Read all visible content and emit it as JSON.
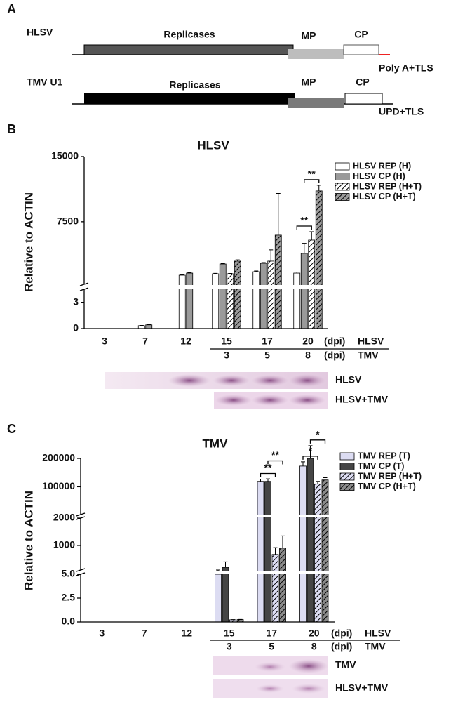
{
  "diagram": {
    "panel_label": "A",
    "genomes": [
      {
        "name": "HLSV",
        "replicase": "Replicases",
        "mp": "MP",
        "cp": "CP",
        "tail": "Poly A+TLS"
      },
      {
        "name": "TMV U1",
        "replicase": "Replicases",
        "mp": "MP",
        "cp": "CP",
        "tail": "UPD+TLS"
      }
    ]
  },
  "chart_data": [
    {
      "type": "bar",
      "panel_label": "B",
      "title": "HLSV",
      "ylabel": "Relative to ACTIN",
      "categories": [
        "3",
        "7",
        "12",
        "15",
        "17",
        "20"
      ],
      "categories2": [
        null,
        null,
        null,
        "3",
        "5",
        "8"
      ],
      "x_rows": [
        {
          "unit": "(dpi)",
          "label": "HLSV"
        },
        {
          "unit": "(dpi)",
          "label": "TMV"
        }
      ],
      "segments": [
        {
          "ylim": [
            0,
            4.5
          ],
          "yticks": [
            0,
            3
          ]
        },
        {
          "ylim": [
            300,
            15000
          ],
          "yticks": [
            7500,
            15000
          ]
        }
      ],
      "legend": "upper right",
      "series": [
        {
          "name": "HLSV REP (H)",
          "color": "#ffffff",
          "hatch": false,
          "values": [
            0,
            0.33,
            1350,
            1510,
            1750,
            1590
          ],
          "errors": [
            0,
            0.03,
            60,
            50,
            80,
            120
          ]
        },
        {
          "name": "HLSV CP (H)",
          "color": "#9a9a9a",
          "hatch": false,
          "values": [
            0,
            0.42,
            1590,
            2640,
            2720,
            3860
          ],
          "errors": [
            0,
            0.03,
            40,
            40,
            80,
            1150
          ]
        },
        {
          "name": "HLSV REP (H+T)",
          "color": "#ffffff",
          "hatch": true,
          "values": [
            null,
            null,
            null,
            1510,
            2970,
            5390
          ],
          "errors": [
            null,
            null,
            null,
            40,
            1300,
            970
          ]
        },
        {
          "name": "HLSV CP (H+T)",
          "color": "#9a9a9a",
          "hatch": true,
          "values": [
            null,
            null,
            null,
            2970,
            5960,
            11050
          ],
          "errors": [
            null,
            null,
            null,
            150,
            4800,
            650
          ]
        }
      ],
      "annotations": [
        {
          "text": "**",
          "category": 5,
          "from": 0,
          "to": 2
        },
        {
          "text": "**",
          "category": 5,
          "from": 1,
          "to": 3
        }
      ],
      "blot_labels": [
        "HLSV",
        "HLSV+TMV"
      ]
    },
    {
      "type": "bar",
      "panel_label": "C",
      "title": "TMV",
      "ylabel": "Relative to ACTIN",
      "categories": [
        "3",
        "7",
        "12",
        "15",
        "17",
        "20"
      ],
      "categories2": [
        null,
        null,
        null,
        "3",
        "5",
        "8"
      ],
      "x_rows": [
        {
          "unit": "(dpi)",
          "label": "HLSV"
        },
        {
          "unit": "(dpi)",
          "label": "TMV"
        }
      ],
      "segments": [
        {
          "ylim": [
            0,
            5
          ],
          "yticks": [
            {
              "value": 0,
              "label": "0.0"
            },
            {
              "value": 2.5,
              "label": "2.5"
            },
            {
              "value": 5,
              "label": "5.0"
            }
          ]
        },
        {
          "ylim": [
            100,
            2000
          ],
          "yticks": [
            1000,
            2000
          ]
        },
        {
          "ylim": [
            2000,
            200000
          ],
          "yticks": [
            100000,
            200000
          ]
        }
      ],
      "legend": "upper right",
      "series": [
        {
          "name": "TMV REP (T)",
          "color": "#dcdcf2",
          "hatch": false,
          "values": [
            null,
            null,
            null,
            5,
            119000,
            173000
          ],
          "errors": [
            null,
            null,
            null,
            0.2,
            8000,
            15000
          ]
        },
        {
          "name": "TMV CP (T)",
          "color": "#454545",
          "hatch": false,
          "values": [
            null,
            null,
            null,
            200,
            119000,
            200000
          ],
          "errors": [
            null,
            null,
            null,
            200,
            9000,
            45000
          ]
        },
        {
          "name": "TMV REP (H+T)",
          "color": "#dcdcf2",
          "hatch": true,
          "values": [
            null,
            null,
            null,
            0.23,
            670,
            110000
          ],
          "errors": [
            null,
            null,
            null,
            0.02,
            250,
            9000
          ]
        },
        {
          "name": "TMV CP (H+T)",
          "color": "#8a8a8a",
          "hatch": true,
          "values": [
            null,
            null,
            null,
            0.25,
            900,
            124000
          ],
          "errors": [
            null,
            null,
            null,
            0.02,
            450,
            8000
          ]
        }
      ],
      "annotations": [
        {
          "text": "**",
          "category": 4,
          "from": 0,
          "to": 2
        },
        {
          "text": "**",
          "category": 4,
          "from": 1,
          "to": 3
        },
        {
          "text": "*",
          "category": 5,
          "from": 0,
          "to": 2
        },
        {
          "text": "*",
          "category": 5,
          "from": 1,
          "to": 3
        }
      ],
      "blot_labels": [
        "TMV",
        "HLSV+TMV"
      ]
    }
  ]
}
